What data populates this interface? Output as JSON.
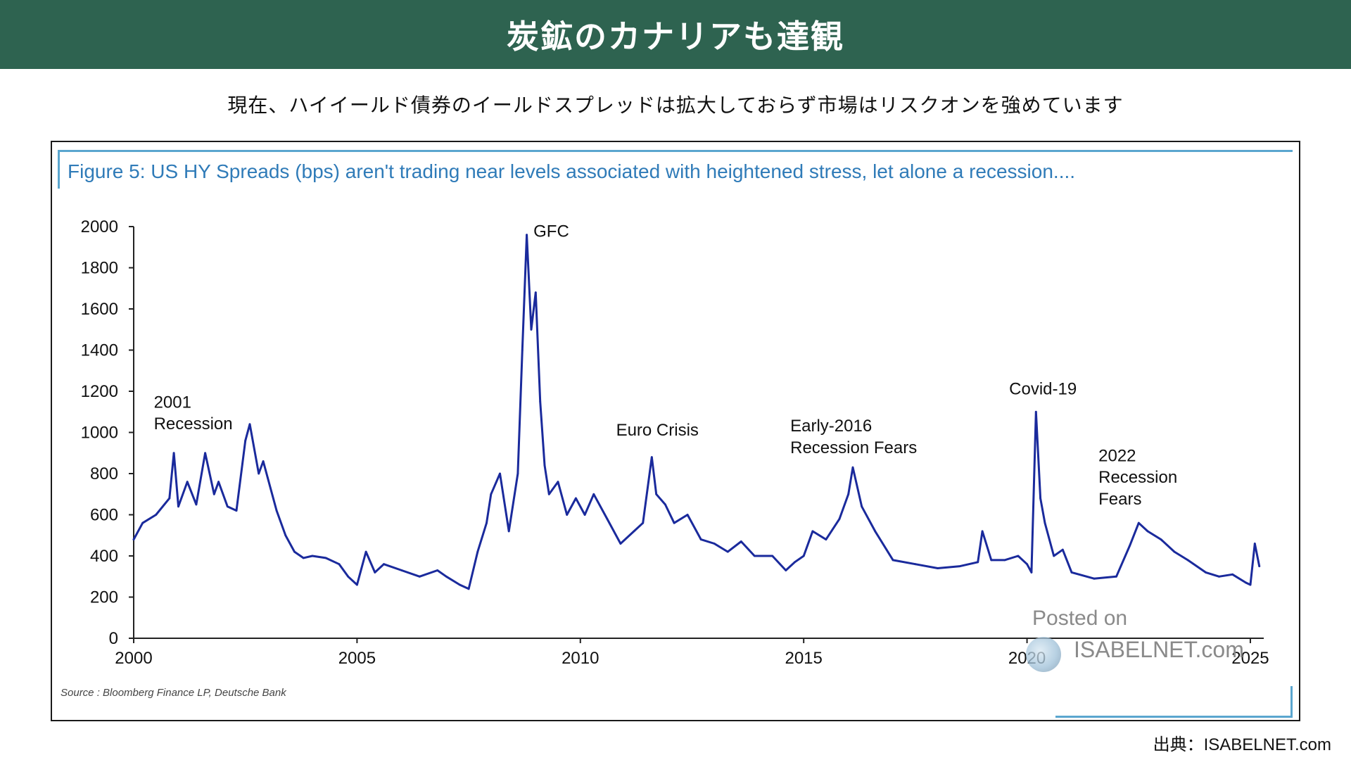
{
  "header": {
    "title": "炭鉱のカナリアも達観"
  },
  "subtitle": "現在、ハイイールド債券のイールドスプレッドは拡大しておらず市場はリスクオンを強めています",
  "figure": {
    "title": "Figure 5: US HY Spreads (bps) aren't trading near levels associated with heightened stress, let alone a recession....",
    "source": "Source : Bloomberg Finance LP, Deutsche Bank"
  },
  "watermark": {
    "posted": "Posted on",
    "site": "ISABELNET.com"
  },
  "credit": "出典：ISABELNET.com",
  "colors": {
    "banner": "#2e6350",
    "line": "#1a2a9c",
    "title": "#2f7bb8",
    "rule": "#5aa6cf"
  },
  "chart_data": {
    "type": "line",
    "title": "",
    "xlabel": "",
    "ylabel": "",
    "xlim": [
      2000,
      2025.3
    ],
    "ylim": [
      0,
      2000
    ],
    "x_ticks": [
      "2000",
      "2005",
      "2010",
      "2015",
      "2020",
      "2025"
    ],
    "y_ticks": [
      "0",
      "200",
      "400",
      "600",
      "800",
      "1000",
      "1200",
      "1400",
      "1600",
      "1800",
      "2000"
    ],
    "grid": false,
    "series": [
      {
        "name": "",
        "x": [
          2000.0,
          2000.2,
          2000.5,
          2000.8,
          2000.9,
          2001.0,
          2001.2,
          2001.4,
          2001.6,
          2001.8,
          2001.9,
          2002.1,
          2002.3,
          2002.5,
          2002.6,
          2002.8,
          2002.9,
          2003.0,
          2003.2,
          2003.4,
          2003.6,
          2003.8,
          2004.0,
          2004.3,
          2004.6,
          2004.8,
          2005.0,
          2005.2,
          2005.4,
          2005.6,
          2006.0,
          2006.4,
          2006.8,
          2007.0,
          2007.3,
          2007.5,
          2007.7,
          2007.9,
          2008.0,
          2008.2,
          2008.4,
          2008.6,
          2008.7,
          2008.8,
          2008.9,
          2009.0,
          2009.1,
          2009.2,
          2009.3,
          2009.5,
          2009.7,
          2009.9,
          2010.1,
          2010.3,
          2010.6,
          2010.9,
          2011.2,
          2011.4,
          2011.6,
          2011.7,
          2011.9,
          2012.1,
          2012.4,
          2012.7,
          2013.0,
          2013.3,
          2013.6,
          2013.9,
          2014.3,
          2014.6,
          2014.8,
          2015.0,
          2015.2,
          2015.5,
          2015.8,
          2016.0,
          2016.1,
          2016.3,
          2016.6,
          2017.0,
          2017.5,
          2018.0,
          2018.5,
          2018.9,
          2019.0,
          2019.2,
          2019.5,
          2019.8,
          2020.0,
          2020.1,
          2020.2,
          2020.3,
          2020.4,
          2020.6,
          2020.8,
          2021.0,
          2021.5,
          2022.0,
          2022.3,
          2022.5,
          2022.7,
          2023.0,
          2023.3,
          2023.6,
          2024.0,
          2024.3,
          2024.6,
          2024.9,
          2025.0,
          2025.1,
          2025.2
        ],
        "y": [
          480,
          560,
          600,
          680,
          900,
          640,
          760,
          650,
          900,
          700,
          760,
          640,
          620,
          960,
          1040,
          800,
          860,
          780,
          620,
          500,
          420,
          390,
          400,
          390,
          360,
          300,
          260,
          420,
          320,
          360,
          330,
          300,
          330,
          300,
          260,
          240,
          420,
          560,
          700,
          800,
          520,
          800,
          1400,
          1960,
          1500,
          1680,
          1150,
          840,
          700,
          760,
          600,
          680,
          600,
          700,
          580,
          460,
          520,
          560,
          880,
          700,
          650,
          560,
          600,
          480,
          460,
          420,
          470,
          400,
          400,
          330,
          370,
          400,
          520,
          480,
          580,
          700,
          830,
          640,
          520,
          380,
          360,
          340,
          350,
          370,
          520,
          380,
          380,
          400,
          360,
          320,
          1100,
          680,
          560,
          400,
          430,
          320,
          290,
          300,
          450,
          560,
          520,
          480,
          420,
          380,
          320,
          300,
          310,
          270,
          260,
          460,
          350
        ]
      }
    ],
    "annotations": [
      {
        "text": "2001",
        "x": 2000.45,
        "y": 1120
      },
      {
        "text": "Recession",
        "x": 2000.45,
        "y": 1015
      },
      {
        "text": "GFC",
        "x": 2008.95,
        "y": 1950
      },
      {
        "text": "Euro Crisis",
        "x": 2010.8,
        "y": 985
      },
      {
        "text": "Early-2016",
        "x": 2014.7,
        "y": 1005
      },
      {
        "text": "Recession Fears",
        "x": 2014.7,
        "y": 900
      },
      {
        "text": "Covid-19",
        "x": 2019.6,
        "y": 1185
      },
      {
        "text": "2022",
        "x": 2021.6,
        "y": 860
      },
      {
        "text": "Recession",
        "x": 2021.6,
        "y": 755
      },
      {
        "text": "Fears",
        "x": 2021.6,
        "y": 650
      }
    ]
  }
}
